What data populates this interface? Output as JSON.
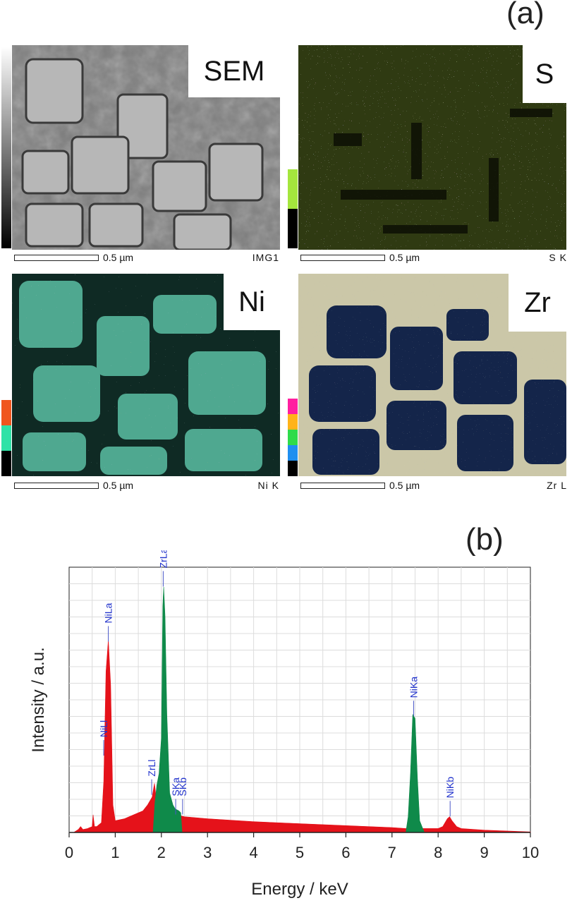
{
  "panel_a": {
    "letter": "(a)",
    "maps": [
      {
        "id": "sem",
        "badge": "SEM",
        "scale_text": "0.5 µm",
        "tag": "IMG1"
      },
      {
        "id": "s",
        "badge": "S",
        "scale_text": "0.5 µm",
        "tag": "S K"
      },
      {
        "id": "ni",
        "badge": "Ni",
        "scale_text": "0.5 µm",
        "tag": "Ni K"
      },
      {
        "id": "zr",
        "badge": "Zr",
        "scale_text": "0.5 µm",
        "tag": "Zr L"
      }
    ],
    "colors": {
      "sem_base": "#8a8a8a",
      "s_base": "#2f3a12",
      "s_dot": "#b5d33a",
      "ni_base": "#0f2a24",
      "ni_grain": "#4fa890",
      "ni_dot": "#d9643a",
      "zr_base": "#1a2b52",
      "zr_crack": "#d9d3b8"
    }
  },
  "panel_b": {
    "letter": "(b)",
    "chart_data": {
      "type": "area",
      "xlabel": "Energy / keV",
      "ylabel": "Intensity / a.u.",
      "xlim": [
        0,
        10
      ],
      "xticks": [
        "0",
        "1",
        "2",
        "3",
        "4",
        "5",
        "6",
        "7",
        "8",
        "9",
        "10"
      ],
      "grid": true,
      "series": [
        {
          "color": "#e5121a",
          "x": [
            0.1,
            0.2,
            0.25,
            0.3,
            0.4,
            0.5,
            0.52,
            0.55,
            0.6,
            0.7,
            0.75,
            0.8,
            0.85,
            0.9,
            0.95,
            1.0,
            1.2,
            1.4,
            1.6,
            1.7,
            1.8,
            1.85,
            1.9,
            2.0,
            2.5,
            3,
            4,
            5,
            6,
            7,
            7.3,
            7.4,
            7.45,
            7.5,
            7.6,
            7.7,
            8.0,
            8.1,
            8.2,
            8.25,
            8.3,
            8.4,
            8.5,
            9,
            10
          ],
          "y": [
            0,
            1.5,
            3,
            1.5,
            2,
            3,
            9,
            3,
            3,
            5,
            26,
            82,
            98,
            75,
            14,
            6,
            7,
            9,
            11,
            14,
            18,
            25,
            15,
            11,
            8,
            7,
            5.5,
            4.5,
            3.5,
            2.5,
            2,
            2,
            2,
            2,
            2,
            2,
            2,
            3,
            7,
            8,
            6,
            3,
            2,
            1.2,
            0.3
          ]
        },
        {
          "color": "#0f8a4a",
          "x": [
            1.82,
            1.86,
            1.9,
            1.95,
            2.0,
            2.03,
            2.05,
            2.08,
            2.12,
            2.18,
            2.25,
            2.3,
            2.38,
            2.42,
            2.45,
            7.3,
            7.35,
            7.4,
            7.45,
            7.5,
            7.55,
            7.6,
            7.7
          ],
          "y": [
            0,
            15,
            24,
            30,
            48,
            115,
            125,
            110,
            60,
            20,
            14,
            12,
            11,
            10,
            0,
            0,
            8,
            30,
            60,
            58,
            28,
            6,
            0
          ]
        }
      ],
      "peaks": [
        {
          "label": "NiLa",
          "x": 0.85
        },
        {
          "label": "NiLl",
          "x": 0.75
        },
        {
          "label": "ZrLa",
          "x": 2.04
        },
        {
          "label": "ZrLl",
          "x": 1.79
        },
        {
          "label": "SKa",
          "x": 2.31
        },
        {
          "label": "SKb",
          "x": 2.46
        },
        {
          "label": "NiKa",
          "x": 7.47
        },
        {
          "label": "NiKb",
          "x": 8.26
        }
      ]
    }
  }
}
